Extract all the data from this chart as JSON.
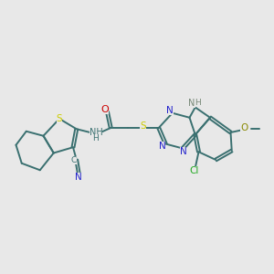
{
  "bg_color": "#e8e8e8",
  "bond_color": "#3a7070",
  "figsize": [
    3.0,
    3.0
  ],
  "dpi": 100,
  "xlim": [
    -1.5,
    10.5
  ],
  "ylim": [
    1.0,
    7.5
  ],
  "colors": {
    "S": "#cccc00",
    "N": "#2222cc",
    "O": "#cc0000",
    "Cl": "#22aa22",
    "NH": "#778877",
    "bond": "#3a7070",
    "OCH3": "#888800"
  }
}
